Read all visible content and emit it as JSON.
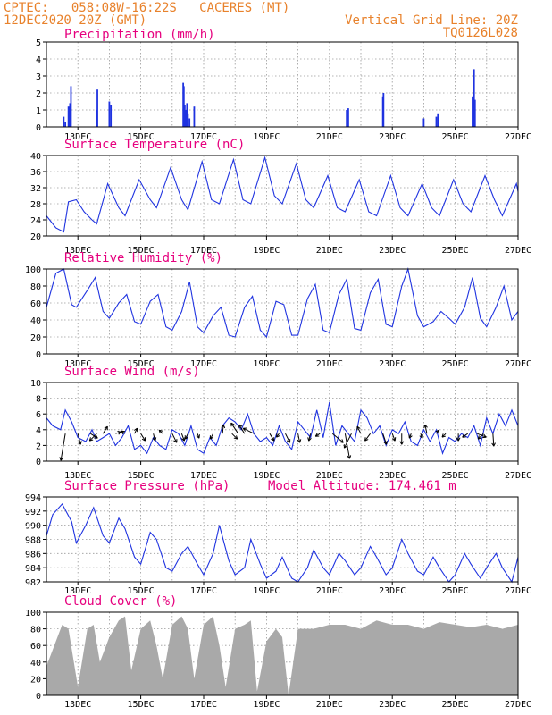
{
  "header": {
    "line1_left": "CPTEC:   058:08W-16:22S   CACERES (MT)",
    "line2_left": "12DEC2020 20Z (GMT)",
    "line2_right": "Vertical Grid Line: 20Z",
    "line3_right": "TQ0126L028"
  },
  "colors": {
    "series": "#1f33e0",
    "titles": "#e6007e",
    "header": "#e8822c",
    "cloud": "#a9a9a9"
  },
  "chart_data": [
    {
      "type": "bar",
      "title": "Precipitation (mm/h)",
      "x_ticks": [
        "13DEC",
        "15DEC",
        "17DEC",
        "19DEC",
        "21DEC",
        "23DEC",
        "25DEC",
        "27DEC"
      ],
      "ylim": [
        0,
        5
      ],
      "y_ticks": [
        0,
        1,
        2,
        3,
        4,
        5
      ],
      "grid": true,
      "x": [
        12.55,
        12.6,
        12.7,
        12.75,
        12.78,
        13.6,
        13.62,
        14.0,
        14.05,
        16.35,
        16.37,
        16.4,
        16.43,
        16.47,
        16.5,
        16.55,
        16.7,
        21.55,
        21.6,
        22.7,
        22.72,
        24.0,
        24.4,
        24.45,
        25.55,
        25.6,
        25.63
      ],
      "values": [
        0.6,
        0.3,
        1.2,
        1.4,
        2.4,
        1.0,
        2.2,
        1.5,
        1.3,
        2.6,
        2.4,
        1.3,
        1.0,
        1.4,
        0.8,
        0.5,
        1.2,
        1.0,
        1.1,
        1.8,
        2.0,
        0.5,
        0.6,
        0.8,
        1.8,
        3.4,
        1.6
      ]
    },
    {
      "type": "line",
      "title": "Surface Temperature (nC)",
      "x_ticks": [
        "13DEC",
        "15DEC",
        "17DEC",
        "19DEC",
        "21DEC",
        "23DEC",
        "25DEC",
        "27DEC"
      ],
      "ylim": [
        20,
        40
      ],
      "y_ticks": [
        20,
        24,
        28,
        32,
        36,
        40
      ],
      "grid": true,
      "x": [
        12.0,
        12.3,
        12.55,
        12.7,
        12.95,
        13.2,
        13.45,
        13.6,
        13.95,
        14.3,
        14.5,
        14.95,
        15.3,
        15.5,
        15.95,
        16.3,
        16.5,
        16.95,
        17.25,
        17.5,
        17.95,
        18.25,
        18.5,
        18.95,
        19.25,
        19.5,
        19.95,
        20.25,
        20.5,
        20.95,
        21.25,
        21.5,
        21.95,
        22.25,
        22.5,
        22.95,
        23.25,
        23.5,
        23.95,
        24.25,
        24.5,
        24.95,
        25.25,
        25.5,
        25.95,
        26.25,
        26.5,
        26.95,
        27.0
      ],
      "values": [
        25,
        22,
        21,
        28.5,
        29,
        26,
        24,
        23,
        33,
        27,
        25,
        34,
        29,
        27,
        37,
        29,
        26.5,
        38.5,
        29,
        28,
        39,
        29,
        28,
        39.5,
        30,
        28,
        38,
        29,
        27,
        35,
        27,
        26,
        34,
        26,
        25,
        35,
        27,
        25,
        33,
        27,
        25,
        34,
        28,
        26,
        35,
        29,
        25,
        33,
        31
      ]
    },
    {
      "type": "line",
      "title": "Relative Humidity (%)",
      "x_ticks": [
        "13DEC",
        "15DEC",
        "17DEC",
        "19DEC",
        "21DEC",
        "23DEC",
        "25DEC",
        "27DEC"
      ],
      "ylim": [
        0,
        100
      ],
      "y_ticks": [
        0,
        20,
        40,
        60,
        80,
        100
      ],
      "grid": true,
      "x": [
        12.0,
        12.3,
        12.55,
        12.8,
        12.95,
        13.3,
        13.55,
        13.8,
        14.0,
        14.3,
        14.55,
        14.8,
        15.0,
        15.3,
        15.55,
        15.8,
        16.0,
        16.3,
        16.55,
        16.8,
        17.0,
        17.3,
        17.55,
        17.8,
        18.0,
        18.3,
        18.55,
        18.8,
        19.0,
        19.3,
        19.55,
        19.8,
        20.0,
        20.3,
        20.55,
        20.8,
        21.0,
        21.3,
        21.55,
        21.8,
        22.0,
        22.3,
        22.55,
        22.8,
        23.0,
        23.3,
        23.5,
        23.8,
        24.0,
        24.3,
        24.55,
        24.8,
        25.0,
        25.3,
        25.55,
        25.8,
        26.0,
        26.3,
        26.55,
        26.8,
        27.0
      ],
      "values": [
        55,
        95,
        100,
        58,
        55,
        75,
        90,
        50,
        42,
        60,
        70,
        38,
        35,
        62,
        70,
        32,
        28,
        50,
        85,
        32,
        25,
        45,
        55,
        22,
        20,
        55,
        68,
        28,
        20,
        62,
        58,
        22,
        22,
        65,
        82,
        28,
        25,
        70,
        88,
        30,
        28,
        72,
        88,
        35,
        32,
        80,
        100,
        45,
        32,
        38,
        50,
        42,
        35,
        55,
        90,
        42,
        32,
        55,
        80,
        40,
        50
      ]
    },
    {
      "type": "line",
      "title": "Surface Wind (m/s)",
      "x_ticks": [
        "13DEC",
        "15DEC",
        "17DEC",
        "19DEC",
        "21DEC",
        "23DEC",
        "25DEC",
        "27DEC"
      ],
      "ylim": [
        0,
        10
      ],
      "y_ticks": [
        0,
        2,
        4,
        6,
        8,
        10
      ],
      "grid": true,
      "x": [
        12.0,
        12.2,
        12.45,
        12.6,
        12.8,
        13.0,
        13.25,
        13.45,
        13.6,
        13.8,
        14.0,
        14.2,
        14.4,
        14.6,
        14.8,
        15.0,
        15.2,
        15.4,
        15.6,
        15.8,
        16.0,
        16.2,
        16.4,
        16.6,
        16.8,
        17.0,
        17.2,
        17.4,
        17.6,
        17.8,
        18.0,
        18.2,
        18.4,
        18.6,
        18.8,
        19.0,
        19.2,
        19.4,
        19.6,
        19.8,
        20.0,
        20.2,
        20.4,
        20.6,
        20.8,
        21.0,
        21.2,
        21.4,
        21.6,
        21.8,
        22.0,
        22.2,
        22.4,
        22.6,
        22.8,
        23.0,
        23.2,
        23.4,
        23.6,
        23.8,
        24.0,
        24.2,
        24.4,
        24.6,
        24.8,
        25.0,
        25.2,
        25.4,
        25.6,
        25.8,
        26.0,
        26.2,
        26.4,
        26.6,
        26.8,
        27.0
      ],
      "values": [
        5.5,
        4.5,
        4.0,
        6.5,
        5.0,
        3.0,
        2.5,
        4.0,
        2.5,
        3.0,
        3.5,
        2.0,
        3.0,
        4.5,
        1.5,
        2.0,
        1.0,
        3.0,
        2.0,
        1.5,
        4.0,
        3.5,
        2.0,
        4.5,
        1.5,
        1.0,
        3.0,
        2.0,
        4.5,
        5.5,
        5.0,
        4.0,
        6.0,
        3.5,
        2.5,
        3.0,
        2.0,
        4.5,
        2.5,
        1.5,
        5.0,
        4.0,
        3.0,
        6.5,
        3.0,
        7.5,
        2.0,
        4.5,
        3.5,
        2.5,
        6.5,
        5.5,
        3.5,
        4.5,
        2.0,
        4.0,
        3.5,
        5.0,
        2.5,
        2.0,
        4.0,
        2.5,
        4.0,
        1.0,
        3.0,
        2.5,
        3.5,
        3.0,
        4.5,
        2.0,
        5.5,
        3.5,
        6.0,
        4.5,
        6.5,
        4.5
      ],
      "vectors": [
        [
          12.6,
          -0.5,
          -3.0
        ],
        [
          13.0,
          0.3,
          -1.2
        ],
        [
          13.4,
          0.8,
          -0.5
        ],
        [
          13.6,
          -0.8,
          -0.8
        ],
        [
          13.8,
          0.5,
          0.8
        ],
        [
          14.2,
          0.6,
          0.2
        ],
        [
          14.5,
          -0.4,
          0.3
        ],
        [
          14.8,
          0.3,
          0.6
        ],
        [
          15.0,
          0.5,
          -0.8
        ],
        [
          15.4,
          0.2,
          -0.8
        ],
        [
          15.7,
          -0.4,
          0.4
        ],
        [
          16.0,
          0.5,
          -1.0
        ],
        [
          16.3,
          0.3,
          -0.8
        ],
        [
          16.5,
          -0.3,
          -0.6
        ],
        [
          16.8,
          0.2,
          -0.5
        ],
        [
          17.3,
          -0.3,
          -0.6
        ],
        [
          17.6,
          0.1,
          1.0
        ],
        [
          17.9,
          0.6,
          -0.6
        ],
        [
          18.1,
          -0.8,
          1.2
        ],
        [
          18.3,
          -0.6,
          1.0
        ],
        [
          18.6,
          -1.2,
          0.6
        ],
        [
          19.1,
          0.5,
          -0.8
        ],
        [
          19.4,
          -0.3,
          -0.4
        ],
        [
          19.6,
          0.5,
          -1.0
        ],
        [
          20.0,
          0.2,
          -1.0
        ],
        [
          20.4,
          -0.2,
          -0.8
        ],
        [
          20.7,
          -0.5,
          -0.3
        ],
        [
          21.1,
          1.2,
          -1.0
        ],
        [
          21.5,
          0.5,
          -2.8
        ],
        [
          21.7,
          -0.8,
          -1.6
        ],
        [
          22.0,
          -0.4,
          0.8
        ],
        [
          22.3,
          -0.6,
          -0.8
        ],
        [
          22.7,
          0.4,
          -1.2
        ],
        [
          23.0,
          0.3,
          -0.8
        ],
        [
          23.3,
          0.0,
          -1.2
        ],
        [
          23.6,
          -0.2,
          -0.5
        ],
        [
          23.9,
          0.2,
          -0.5
        ],
        [
          24.1,
          -0.2,
          1.0
        ],
        [
          24.4,
          0.3,
          0.4
        ],
        [
          24.7,
          -0.4,
          -0.4
        ],
        [
          25.1,
          0.0,
          -0.8
        ],
        [
          25.4,
          -0.6,
          -0.4
        ],
        [
          25.7,
          1.0,
          -0.4
        ],
        [
          25.9,
          -0.6,
          -0.6
        ],
        [
          26.2,
          0.1,
          -1.4
        ]
      ]
    },
    {
      "type": "line",
      "title": "Surface Pressure (hPa)",
      "annotation": "Model Altitude: 174.461  m",
      "x_ticks": [
        "13DEC",
        "15DEC",
        "17DEC",
        "19DEC",
        "21DEC",
        "23DEC",
        "25DEC",
        "27DEC"
      ],
      "ylim": [
        982,
        994
      ],
      "y_ticks": [
        982,
        984,
        986,
        988,
        990,
        992,
        994
      ],
      "grid": true,
      "x": [
        12.0,
        12.2,
        12.5,
        12.8,
        12.95,
        13.25,
        13.5,
        13.8,
        14.0,
        14.3,
        14.5,
        14.8,
        15.0,
        15.3,
        15.5,
        15.8,
        16.0,
        16.3,
        16.5,
        16.8,
        17.0,
        17.3,
        17.5,
        17.8,
        18.0,
        18.3,
        18.5,
        18.8,
        19.0,
        19.3,
        19.5,
        19.8,
        20.0,
        20.3,
        20.5,
        20.8,
        21.0,
        21.3,
        21.5,
        21.8,
        22.0,
        22.3,
        22.5,
        22.8,
        23.0,
        23.3,
        23.5,
        23.8,
        24.0,
        24.3,
        24.5,
        24.8,
        25.0,
        25.3,
        25.5,
        25.8,
        26.0,
        26.3,
        26.5,
        26.8,
        27.0
      ],
      "values": [
        988.5,
        991.5,
        993.0,
        990.5,
        987.5,
        990.0,
        992.5,
        988.5,
        987.5,
        991.0,
        989.5,
        985.5,
        984.5,
        989.0,
        988.0,
        984.0,
        983.5,
        986.0,
        987.0,
        984.5,
        983.0,
        986.0,
        990.0,
        985.0,
        983.0,
        984.0,
        988.0,
        984.5,
        982.5,
        983.5,
        985.5,
        982.5,
        982.0,
        984.0,
        986.5,
        984.0,
        983.0,
        986.0,
        985.0,
        983.0,
        984.0,
        987.0,
        985.5,
        983.0,
        984.0,
        988.0,
        986.0,
        983.5,
        983.0,
        985.5,
        984.0,
        982.0,
        983.0,
        986.0,
        984.5,
        982.5,
        984.0,
        986.0,
        984.0,
        982.0,
        985.5
      ]
    },
    {
      "type": "bar",
      "title": "Cloud Cover (%)",
      "x_ticks": [
        "13DEC",
        "15DEC",
        "17DEC",
        "19DEC",
        "21DEC",
        "23DEC",
        "25DEC",
        "27DEC"
      ],
      "ylim": [
        0,
        100
      ],
      "y_ticks": [
        0,
        20,
        40,
        60,
        80,
        100
      ],
      "grid": true,
      "x": [
        12.0,
        12.5,
        12.7,
        13.0,
        13.3,
        13.5,
        13.7,
        14.0,
        14.3,
        14.5,
        14.7,
        15.0,
        15.3,
        15.5,
        15.7,
        16.0,
        16.3,
        16.5,
        16.7,
        17.0,
        17.3,
        17.5,
        17.7,
        18.0,
        18.3,
        18.5,
        18.7,
        19.0,
        19.3,
        19.5,
        19.7,
        20.0,
        20.5,
        21.0,
        21.5,
        22.0,
        22.5,
        23.0,
        23.5,
        24.0,
        24.5,
        25.0,
        25.5,
        26.0,
        26.5,
        27.0
      ],
      "values": [
        35,
        85,
        80,
        10,
        80,
        85,
        40,
        70,
        90,
        95,
        30,
        80,
        90,
        60,
        20,
        85,
        95,
        80,
        20,
        85,
        95,
        60,
        10,
        80,
        85,
        90,
        5,
        65,
        80,
        70,
        0,
        80,
        80,
        85,
        85,
        80,
        90,
        85,
        85,
        80,
        88,
        85,
        82,
        85,
        80,
        85
      ]
    }
  ]
}
